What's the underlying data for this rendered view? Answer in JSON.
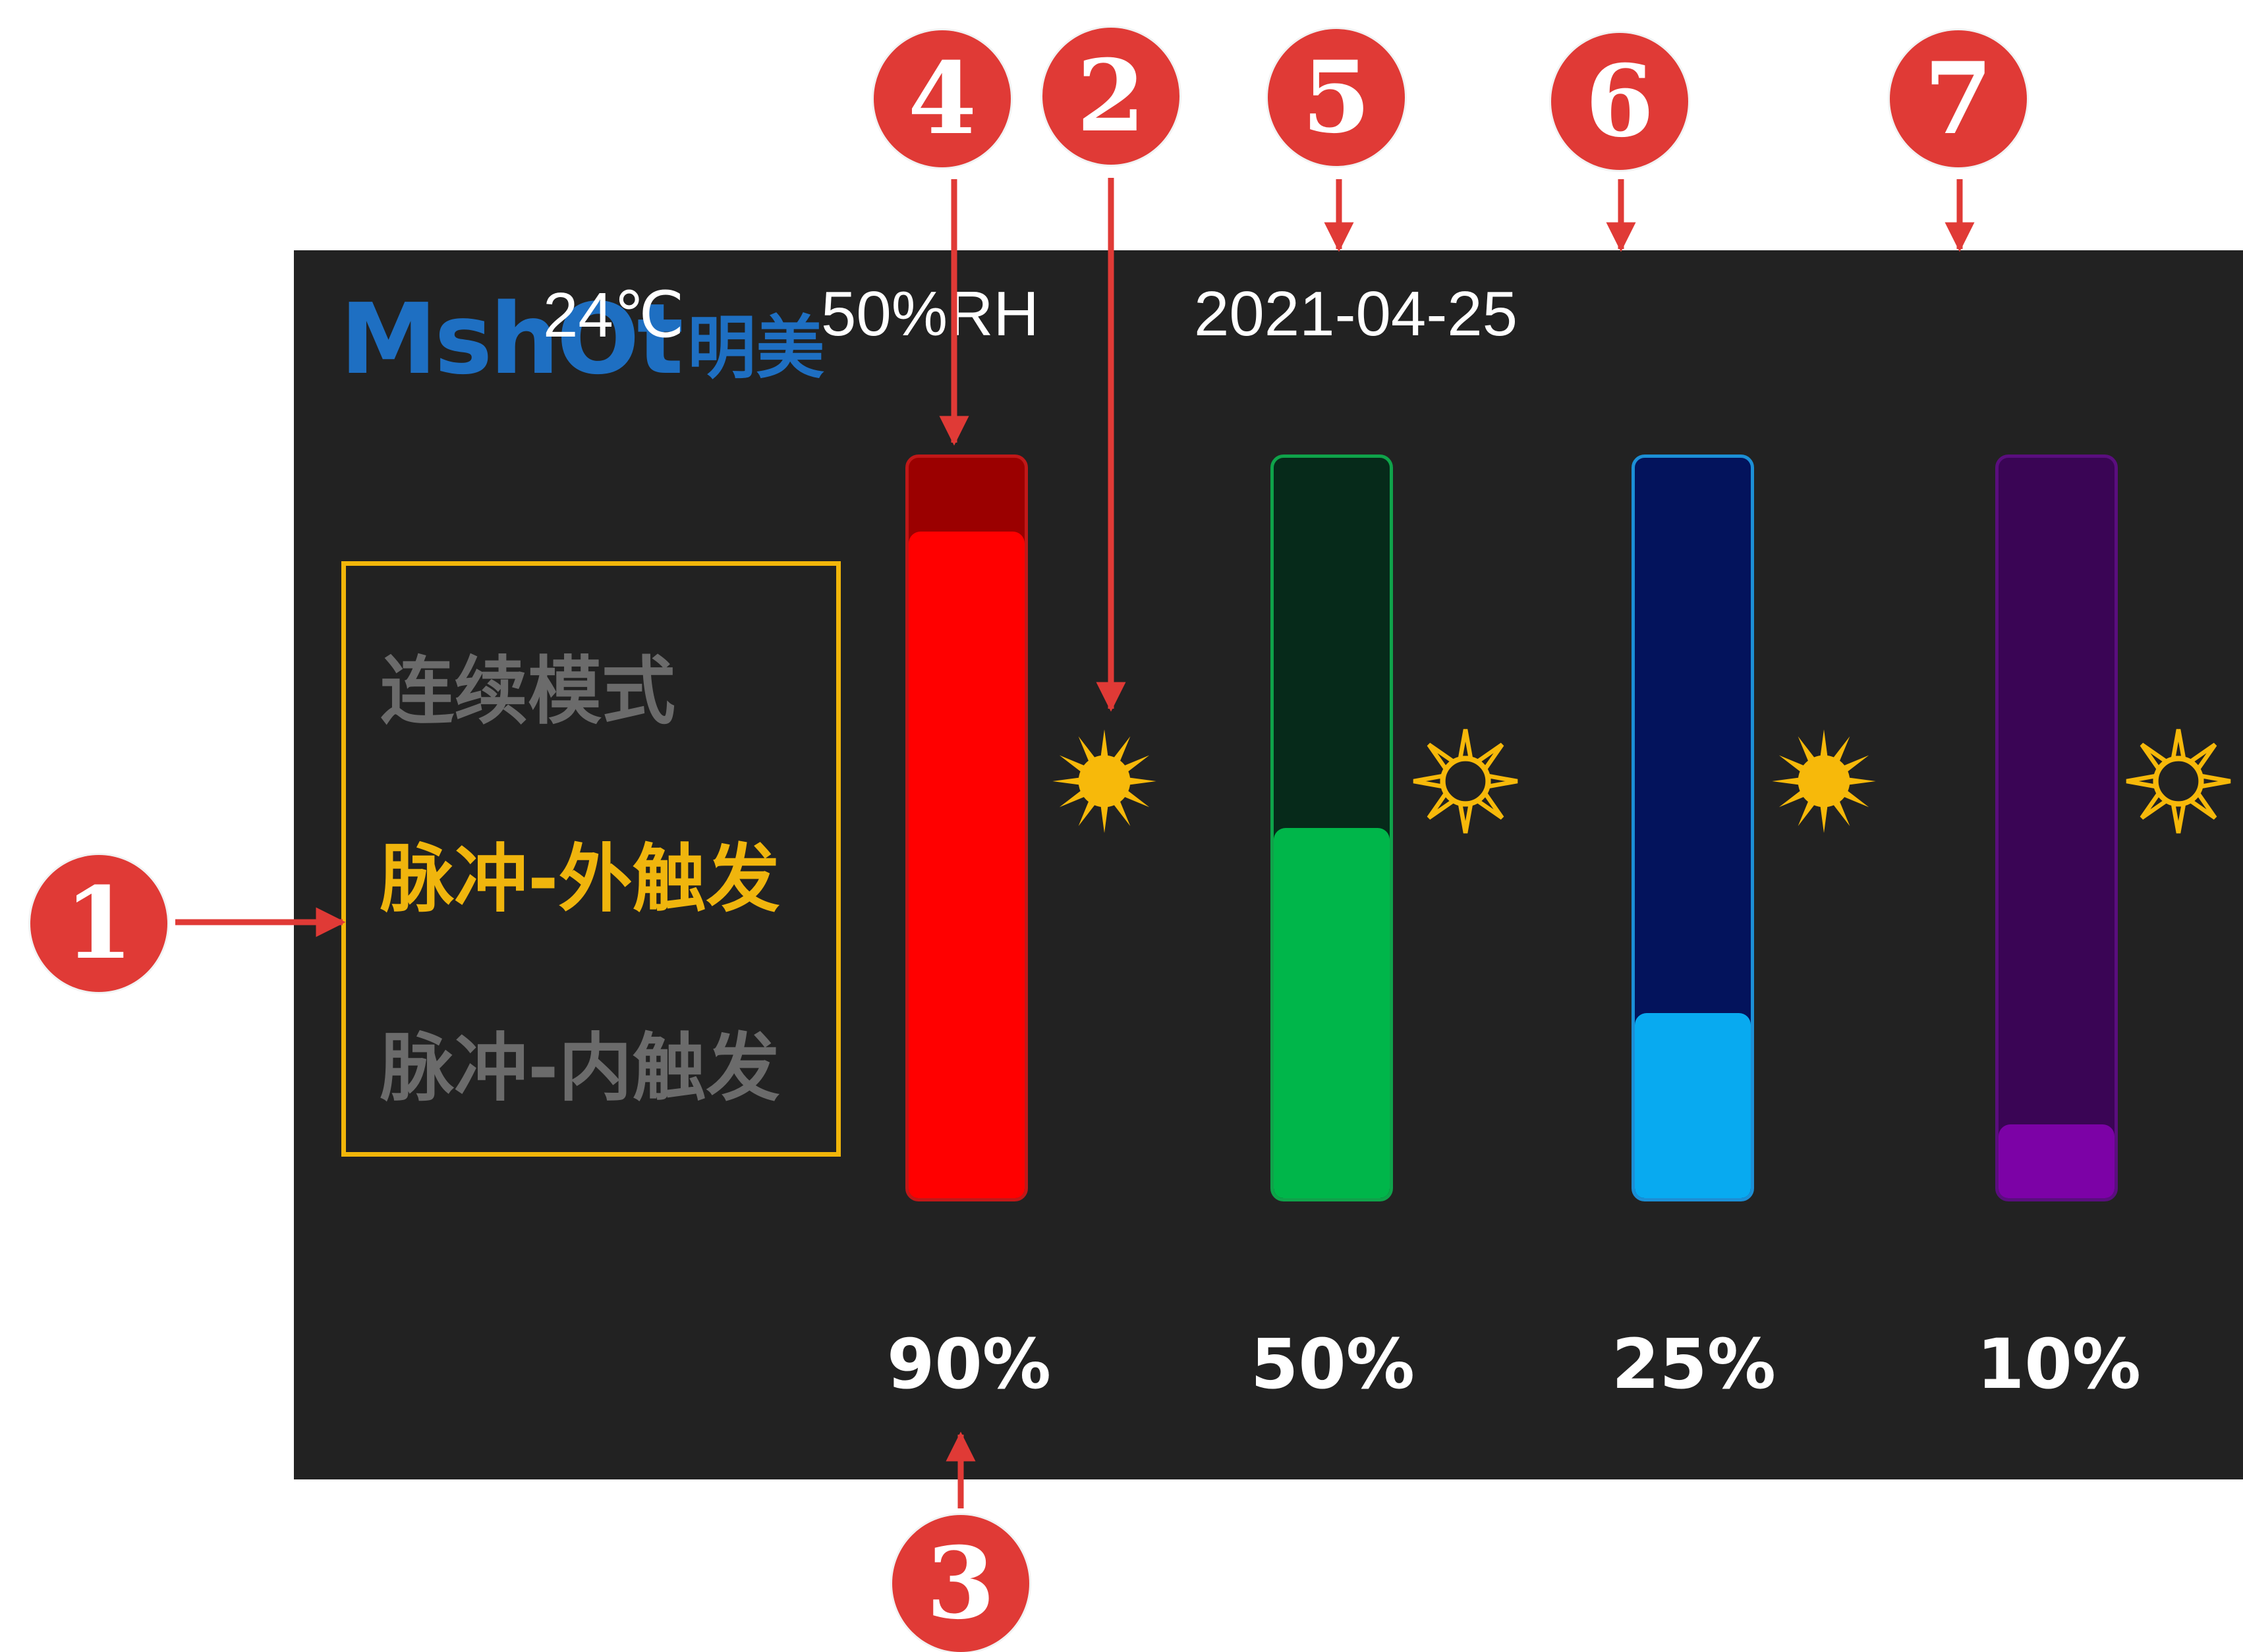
{
  "logo": {
    "latin": "MshOt",
    "cjk": "明美"
  },
  "modes": [
    {
      "label": "连续模式",
      "active": false
    },
    {
      "label": "脉冲-外触发",
      "active": true
    },
    {
      "label": "脉冲-内触发",
      "active": false
    }
  ],
  "status": {
    "temperature": "24℃",
    "humidity": "50%RH",
    "date": "2021-04-25"
  },
  "channels": [
    {
      "percent_label": "90%",
      "level": 0.9,
      "fill_color": "#ff0000",
      "track_color": "#9b0000",
      "border_color": "#c01818",
      "sun": "solid"
    },
    {
      "percent_label": "50%",
      "level": 0.5,
      "fill_color": "#00b64a",
      "track_color": "#062a1a",
      "border_color": "#0fa34a",
      "sun": "outline"
    },
    {
      "percent_label": "25%",
      "level": 0.25,
      "fill_color": "#08aaf0",
      "track_color": "#03135c",
      "border_color": "#1c8fd6",
      "sun": "solid"
    },
    {
      "percent_label": "10%",
      "level": 0.1,
      "fill_color": "#7c02a6",
      "track_color": "#3a0555",
      "border_color": "#5a0e7e",
      "sun": "outline"
    }
  ],
  "icons": {
    "light_on": "sun-solid-icon",
    "light_off": "sun-outline-icon",
    "sun_color": "#f7b90a"
  },
  "callouts": [
    "1",
    "2",
    "3",
    "4",
    "5",
    "6",
    "7"
  ],
  "colors": {
    "panel_bg": "#222222",
    "accent": "#f0b50d",
    "brand": "#1e6fc2",
    "callout": "#e03a36"
  }
}
